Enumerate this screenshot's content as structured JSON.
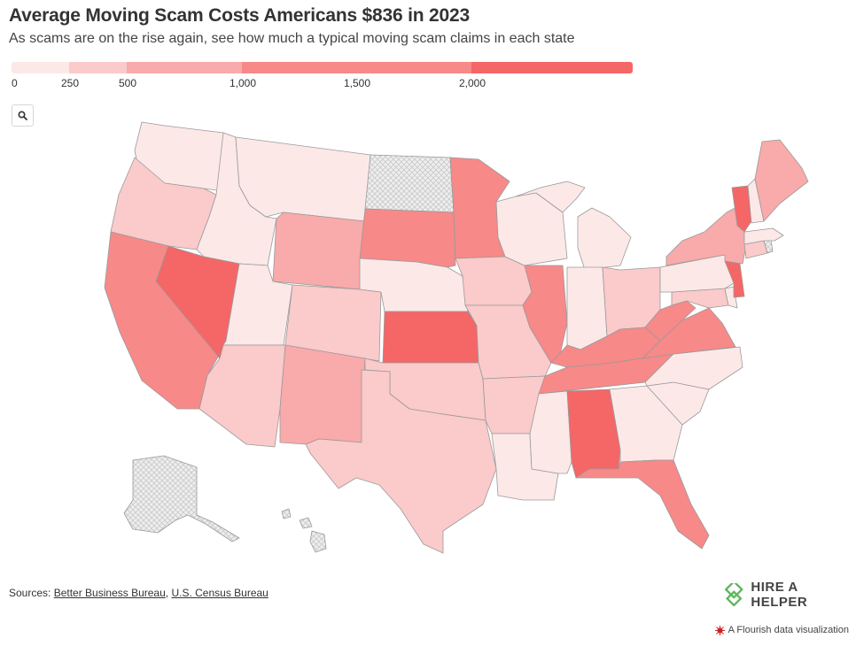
{
  "header": {
    "title": "Average Moving Scam Costs Americans $836 in 2023",
    "subtitle": "As scams are on the rise again, see how much a typical moving scam claims in each state"
  },
  "legend": {
    "bins": [
      {
        "from": 0,
        "to": 250,
        "color": "#fde8e8"
      },
      {
        "from": 250,
        "to": 500,
        "color": "#fbcaca"
      },
      {
        "from": 500,
        "to": 1000,
        "color": "#f9aaaa"
      },
      {
        "from": 1000,
        "to": 2000,
        "color": "#f78989"
      },
      {
        "from": 2000,
        "to": 2700,
        "color": "#f56667"
      }
    ],
    "ticks": [
      "0",
      "250",
      "500",
      "1,000",
      "1,500",
      "2,000"
    ]
  },
  "colors": {
    "tier1": "#fde8e8",
    "tier2": "#fbcaca",
    "tier3": "#f9aaaa",
    "tier4": "#f78989",
    "tier5": "#f56667",
    "nodata": "#e9e9e9",
    "stroke": "#9a9a9a",
    "brand": "#5cb85c"
  },
  "icons": {
    "zoom": "search-icon",
    "logo": "hire-a-helper-logo-icon",
    "flourish": "flourish-icon"
  },
  "footer": {
    "sources_label": "Sources:",
    "source_1": "Better Business Bureau",
    "separator": ",",
    "source_2": "U.S. Census Bureau",
    "logo_text": "HIRE A HELPER",
    "flourish_text": "A Flourish data visualization"
  }
}
